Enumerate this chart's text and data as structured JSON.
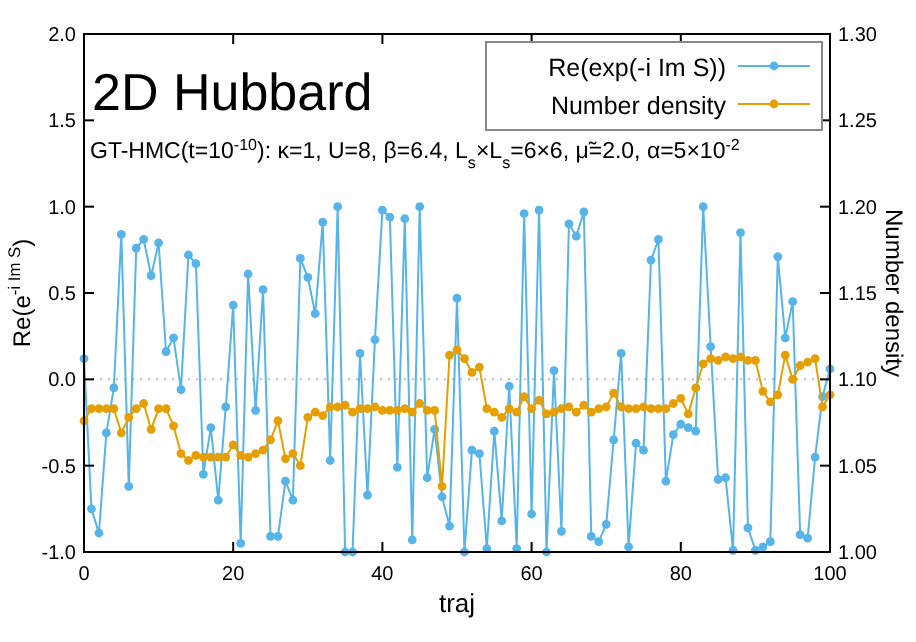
{
  "chart_data": {
    "type": "line",
    "title": "2D Hubbard",
    "subtitle": "GT-HMC(t=10$^{-10}$): κ=1, U=8, β=6.4, L$_{s}$×L$_{s}$=6×6, μ̃=2.0, α=5×10$^{-2}$",
    "xlabel": "traj",
    "ylabel": "Re(e$^{-i Im S}$)",
    "y2label": "Number density",
    "x": [
      0,
      1,
      2,
      3,
      4,
      5,
      6,
      7,
      8,
      9,
      10,
      11,
      12,
      13,
      14,
      15,
      16,
      17,
      18,
      19,
      20,
      21,
      22,
      23,
      24,
      25,
      26,
      27,
      28,
      29,
      30,
      31,
      32,
      33,
      34,
      35,
      36,
      37,
      38,
      39,
      40,
      41,
      42,
      43,
      44,
      45,
      46,
      47,
      48,
      49,
      50,
      51,
      52,
      53,
      54,
      55,
      56,
      57,
      58,
      59,
      60,
      61,
      62,
      63,
      64,
      65,
      66,
      67,
      68,
      69,
      70,
      71,
      72,
      73,
      74,
      75,
      76,
      77,
      78,
      79,
      80,
      81,
      82,
      83,
      84,
      85,
      86,
      87,
      88,
      89,
      90,
      91,
      92,
      93,
      94,
      95,
      96,
      97,
      98,
      99,
      100
    ],
    "series": [
      {
        "name": "Re(exp(-i Im S))",
        "color": "#56b4e9",
        "values": [
          0.12,
          -0.75,
          -0.89,
          -0.31,
          -0.05,
          0.84,
          -0.62,
          0.76,
          0.81,
          0.6,
          0.79,
          0.16,
          0.24,
          -0.06,
          0.72,
          0.67,
          -0.55,
          -0.28,
          -0.7,
          -0.16,
          0.43,
          -0.95,
          0.61,
          -0.18,
          0.52,
          -0.91,
          -0.91,
          -0.59,
          -0.7,
          0.7,
          0.59,
          0.38,
          0.91,
          -0.47,
          1.0,
          -1.0,
          -1.0,
          0.15,
          -0.67,
          0.23,
          0.98,
          0.94,
          -0.51,
          0.93,
          -0.93,
          1.0,
          -0.57,
          -0.29,
          -0.68,
          -0.85,
          0.47,
          -1.0,
          -0.41,
          -0.43,
          -0.98,
          -0.3,
          -0.82,
          -0.04,
          -0.98,
          0.96,
          -0.78,
          0.98,
          -1.0,
          0.05,
          -0.88,
          0.9,
          0.83,
          0.97,
          -0.91,
          -0.94,
          -0.84,
          -0.35,
          0.15,
          -0.97,
          -0.37,
          -0.41,
          0.69,
          0.81,
          -0.59,
          -0.32,
          -0.26,
          -0.28,
          -0.3,
          1.0,
          0.19,
          -0.58,
          -0.57,
          -0.99,
          0.85,
          -0.86,
          -0.99,
          -0.97,
          -0.94,
          0.71,
          0.24,
          0.45,
          -0.9,
          -0.92,
          -0.45,
          -0.1,
          0.06
        ]
      },
      {
        "name": "Number density",
        "color": "#e69f00",
        "axis": "y2",
        "values": [
          1.076,
          1.083,
          1.083,
          1.083,
          1.083,
          1.069,
          1.078,
          1.083,
          1.086,
          1.071,
          1.083,
          1.083,
          1.073,
          1.057,
          1.053,
          1.056,
          1.055,
          1.055,
          1.055,
          1.055,
          1.062,
          1.056,
          1.055,
          1.057,
          1.059,
          1.065,
          1.076,
          1.054,
          1.057,
          1.05,
          1.078,
          1.081,
          1.079,
          1.084,
          1.084,
          1.085,
          1.081,
          1.083,
          1.083,
          1.084,
          1.082,
          1.082,
          1.082,
          1.083,
          1.081,
          1.086,
          1.082,
          1.082,
          1.038,
          1.114,
          1.117,
          1.112,
          1.104,
          1.107,
          1.083,
          1.081,
          1.078,
          1.083,
          1.081,
          1.09,
          1.083,
          1.088,
          1.08,
          1.081,
          1.083,
          1.084,
          1.081,
          1.085,
          1.081,
          1.083,
          1.084,
          1.092,
          1.084,
          1.083,
          1.083,
          1.084,
          1.083,
          1.083,
          1.083,
          1.086,
          1.089,
          1.08,
          1.095,
          1.109,
          1.112,
          1.111,
          1.113,
          1.112,
          1.113,
          1.111,
          1.111,
          1.093,
          1.087,
          1.091,
          1.114,
          1.1,
          1.108,
          1.11,
          1.112,
          1.084,
          1.091
        ]
      }
    ],
    "xlim": [
      0,
      100
    ],
    "xticks": [
      0,
      20,
      40,
      60,
      80,
      100
    ],
    "ylim": [
      -1,
      2
    ],
    "yticks": [
      {
        "value": -1,
        "label": "-1.0"
      },
      {
        "value": -0.5,
        "label": "-0.5"
      },
      {
        "value": 0,
        "label": "0.0"
      },
      {
        "value": 0.5,
        "label": "0.5"
      },
      {
        "value": 1,
        "label": "1.0"
      },
      {
        "value": 1.5,
        "label": "1.5"
      },
      {
        "value": 2,
        "label": "2.0"
      }
    ],
    "y2lim": [
      1,
      1.3
    ],
    "y2ticks": [
      {
        "value": 1,
        "label": "1.00"
      },
      {
        "value": 1.05,
        "label": "1.05"
      },
      {
        "value": 1.1,
        "label": "1.10"
      },
      {
        "value": 1.15,
        "label": "1.15"
      },
      {
        "value": 1.2,
        "label": "1.20"
      },
      {
        "value": 1.25,
        "label": "1.25"
      },
      {
        "value": 1.3,
        "label": "1.30"
      }
    ],
    "ref_lines": [
      {
        "axis": "y",
        "value": 0,
        "color": "#bbbbbb",
        "line_style": "dotted"
      }
    ],
    "legend": "top right",
    "marker": "circle",
    "line_style": "solid",
    "grid": false
  }
}
